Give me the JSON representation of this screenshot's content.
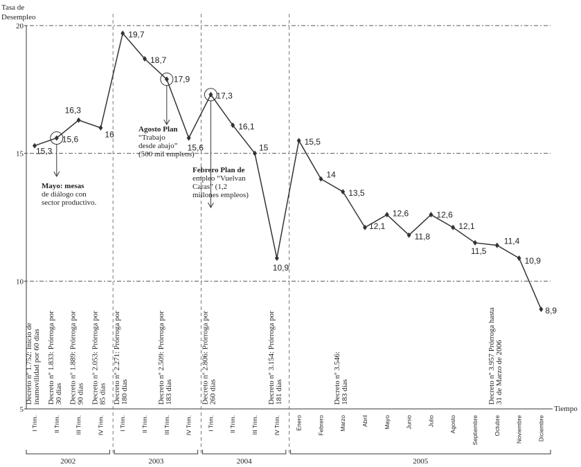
{
  "chart_data": {
    "type": "line",
    "ylabel": [
      "Tasa de",
      "Desempleo"
    ],
    "xlabel": "Tiempo",
    "categories": [
      "I Trim.",
      "II Trim.",
      "III Trim.",
      "IV Trim.",
      "I Trim.",
      "II Trim.",
      "III Trim.",
      "IV Trim.",
      "I Trim.",
      "II Trim.",
      "III Trim.",
      "IV Trim.",
      "Enero",
      "Febrero",
      "Marzo",
      "Abril",
      "Mayo",
      "Junio",
      "Julio",
      "Agosto",
      "Septiembre",
      "Octubre",
      "Noviembre",
      "Diciembre"
    ],
    "values": [
      15.3,
      15.6,
      16.3,
      16,
      19.7,
      18.7,
      17.9,
      15.6,
      17.3,
      16.1,
      15,
      10.9,
      15.5,
      14,
      13.5,
      12.1,
      12.6,
      11.8,
      12.6,
      12.1,
      11.5,
      11.4,
      10.9,
      8.9
    ],
    "value_labels": [
      "15,3",
      "15,6",
      "16,3",
      "16",
      "19,7",
      "18,7",
      "17,9",
      "15,6",
      "17,3",
      "16,1",
      "15",
      "10,9",
      "15,5",
      "14",
      "13,5",
      "12,1",
      "12,6",
      "11,8",
      "12,6",
      "12,1",
      "11,5",
      "11,4",
      "10,9",
      "8,9"
    ],
    "color": "#333333",
    "ylim": [
      5,
      20
    ],
    "yticks": [
      5,
      10,
      15,
      20
    ],
    "grid": true,
    "groups": [
      "2002",
      "2003",
      "2004",
      "2005"
    ],
    "decrees": [
      [
        "Decreto nº 1.752: Inicio de",
        "inamovilidad por 60 días"
      ],
      [
        "Decreto nº 1.833: Prórroga por",
        "30 días"
      ],
      [
        "Decreto nº 1.889: Prórroga por",
        "90 días"
      ],
      [
        "Decreto nº 2.053: Prórroga por",
        "85 días"
      ],
      [
        "Decreto nº 2.271: Prórroga por",
        "180 días"
      ],
      null,
      [
        "Decreto nº 2.509: Prórroga por",
        "183 días"
      ],
      null,
      [
        "Decreto nº 2.806: Prórroga por",
        "260 días"
      ],
      null,
      null,
      [
        "Decreto nº 3.154: Prórroga por",
        "181 días"
      ],
      null,
      null,
      [
        "Decreto nº 3.546:",
        "183 días"
      ],
      null,
      null,
      null,
      null,
      null,
      null,
      [
        "Decreto nº 3.957 Prórroga hasta",
        "31 de Marzo de 2006"
      ],
      null,
      null
    ],
    "events": [
      null,
      [
        "Mayo: mesas",
        "de diálogo con",
        "sector productivo."
      ],
      null,
      null,
      null,
      null,
      [
        "Agosto Plan",
        "“Trabajo",
        "desde abajo”",
        "(500 mil empleos)"
      ],
      null,
      [
        "Febrero Plan de",
        "empleo “Vuelvan",
        "Caras” (1,2",
        "millones empleos)"
      ],
      null,
      null,
      null,
      null,
      null,
      null,
      null,
      null,
      null,
      null,
      null,
      null,
      null,
      null,
      null
    ]
  }
}
